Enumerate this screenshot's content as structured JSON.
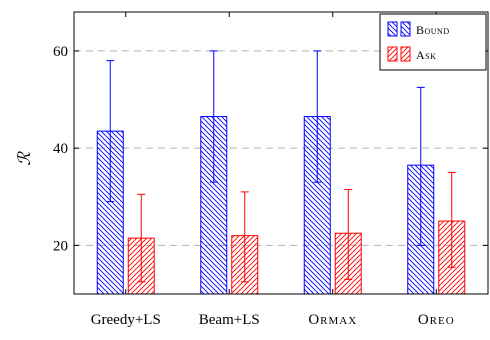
{
  "chart_data": {
    "type": "bar",
    "categories": [
      "Greedy+LS",
      "Beam+LS",
      "ORMAX",
      "OREO"
    ],
    "ylabel": "ℛ",
    "ylim": [
      10,
      68
    ],
    "yticks": [
      20,
      40,
      60
    ],
    "grid": "horizontal-dashed",
    "legend_position": "top-right",
    "series": [
      {
        "name": "BOUND",
        "color": "#0000ff",
        "values": [
          43.5,
          46.5,
          46.5,
          36.5
        ],
        "error_low": [
          29,
          33,
          33,
          20
        ],
        "error_high": [
          58,
          60,
          60,
          52.5
        ]
      },
      {
        "name": "ASK",
        "color": "#ff0000",
        "values": [
          21.5,
          22,
          22.5,
          25
        ],
        "error_low": [
          12.5,
          12.5,
          13,
          15.5
        ],
        "error_high": [
          30.5,
          31,
          31.5,
          35
        ]
      }
    ]
  }
}
